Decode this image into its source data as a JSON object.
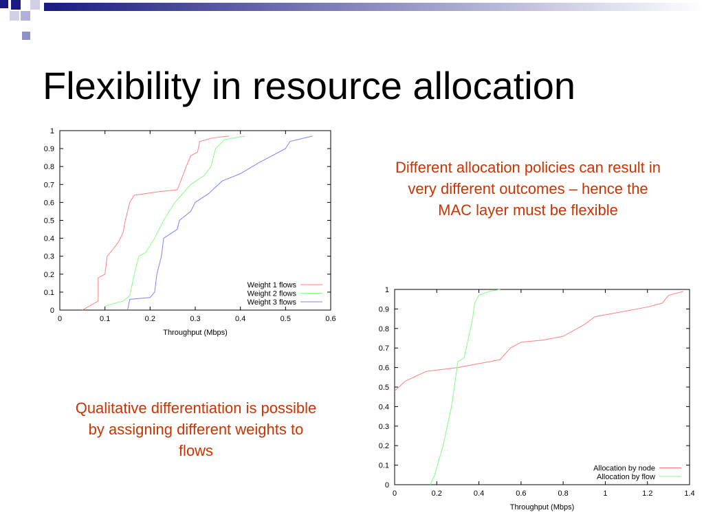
{
  "title": "Flexibility in resource allocation",
  "notes": [
    "Different allocation policies can result in very different outcomes – hence the MAC layer must be flexible",
    "Qualitative differentiation is possible by assigning different weights to flows"
  ],
  "chart_data": [
    {
      "type": "line",
      "xlabel": "Throughput (Mbps)",
      "xlim": [
        0,
        0.6
      ],
      "ylim": [
        0,
        1
      ],
      "xticks": [
        0,
        0.1,
        0.2,
        0.3,
        0.4,
        0.5,
        0.6
      ],
      "yticks": [
        0,
        0.1,
        0.2,
        0.3,
        0.4,
        0.5,
        0.6,
        0.7,
        0.8,
        0.9,
        1
      ],
      "legend": "lower right",
      "series": [
        {
          "name": "Weight 1 flows",
          "color": "#ff8080",
          "x": [
            0.05,
            0.085,
            0.085,
            0.1,
            0.105,
            0.115,
            0.13,
            0.14,
            0.145,
            0.155,
            0.165,
            0.22,
            0.26,
            0.265,
            0.28,
            0.29,
            0.305,
            0.31,
            0.34,
            0.375
          ],
          "values": [
            0,
            0.05,
            0.18,
            0.2,
            0.3,
            0.33,
            0.38,
            0.43,
            0.5,
            0.6,
            0.64,
            0.66,
            0.67,
            0.7,
            0.8,
            0.86,
            0.88,
            0.94,
            0.96,
            0.97
          ]
        },
        {
          "name": "Weight 2 flows",
          "color": "#80ff80",
          "x": [
            0.1,
            0.11,
            0.14,
            0.155,
            0.165,
            0.175,
            0.19,
            0.21,
            0.23,
            0.255,
            0.29,
            0.32,
            0.335,
            0.345,
            0.365,
            0.41
          ],
          "values": [
            0.02,
            0.03,
            0.05,
            0.08,
            0.2,
            0.3,
            0.32,
            0.4,
            0.5,
            0.6,
            0.7,
            0.75,
            0.8,
            0.9,
            0.95,
            0.97
          ]
        },
        {
          "name": "Weight 3 flows",
          "color": "#8080ff",
          "x": [
            0.15,
            0.155,
            0.2,
            0.21,
            0.215,
            0.225,
            0.23,
            0.26,
            0.265,
            0.29,
            0.3,
            0.33,
            0.36,
            0.4,
            0.44,
            0.5,
            0.51,
            0.56
          ],
          "values": [
            0,
            0.06,
            0.07,
            0.1,
            0.2,
            0.3,
            0.4,
            0.45,
            0.5,
            0.55,
            0.6,
            0.65,
            0.72,
            0.76,
            0.82,
            0.9,
            0.94,
            0.97
          ]
        }
      ]
    },
    {
      "type": "line",
      "xlabel": "Throughput (Mbps)",
      "xlim": [
        0,
        1.4
      ],
      "ylim": [
        0,
        1
      ],
      "xticks": [
        0,
        0.2,
        0.4,
        0.6,
        0.8,
        1,
        1.2,
        1.4
      ],
      "yticks": [
        0,
        0.1,
        0.2,
        0.3,
        0.4,
        0.5,
        0.6,
        0.7,
        0.8,
        0.9,
        1
      ],
      "legend": "lower right",
      "series": [
        {
          "name": "Allocation by node",
          "color": "#ff8080",
          "x": [
            0,
            0.05,
            0.15,
            0.3,
            0.4,
            0.5,
            0.55,
            0.6,
            0.7,
            0.8,
            0.9,
            0.95,
            1.1,
            1.2,
            1.27,
            1.3,
            1.37
          ],
          "values": [
            0.48,
            0.53,
            0.58,
            0.6,
            0.62,
            0.64,
            0.7,
            0.73,
            0.74,
            0.76,
            0.82,
            0.86,
            0.89,
            0.91,
            0.93,
            0.97,
            0.99
          ]
        },
        {
          "name": "Allocation by flow",
          "color": "#80ff80",
          "x": [
            0.17,
            0.19,
            0.23,
            0.27,
            0.29,
            0.3,
            0.33,
            0.35,
            0.37,
            0.38,
            0.4,
            0.45,
            0.5
          ],
          "values": [
            0,
            0.05,
            0.2,
            0.4,
            0.55,
            0.63,
            0.65,
            0.75,
            0.85,
            0.93,
            0.97,
            0.99,
            1
          ]
        }
      ]
    }
  ]
}
